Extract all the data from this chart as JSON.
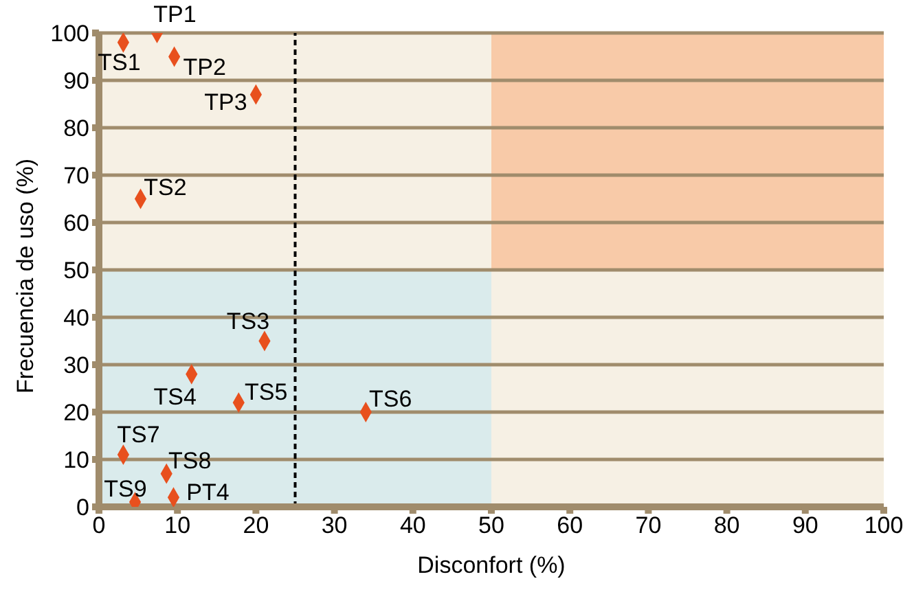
{
  "chart_data": {
    "type": "scatter",
    "xlabel": "Disconfort (%)",
    "ylabel": "Frecuencia de uso (%)",
    "x": [
      3.1,
      7.4,
      9.6,
      20,
      5.3,
      21.1,
      11.8,
      17.8,
      34,
      3.1,
      8.6,
      4.6,
      9.5
    ],
    "values": [
      98,
      100,
      95,
      87,
      65,
      35,
      28,
      22,
      20,
      11,
      7,
      1,
      2
    ],
    "color": "#e8501e",
    "marker": "diamond",
    "xlim": [
      0,
      100
    ],
    "ylim": [
      0,
      100
    ],
    "xticks": [
      0,
      10,
      20,
      30,
      40,
      50,
      60,
      70,
      80,
      90,
      100
    ],
    "yticks": [
      0,
      10,
      20,
      30,
      40,
      50,
      60,
      70,
      80,
      90,
      100
    ],
    "grid": "y",
    "ref_lines": [
      {
        "axis": "x",
        "value": 25,
        "color": "#000000",
        "line_style": "dashed"
      }
    ],
    "bands": [
      {
        "axis": "x",
        "from": 0,
        "to": 50,
        "color": "#daebec"
      },
      {
        "axis": "y",
        "from": 50,
        "to": 100,
        "color": "#f8caa8"
      }
    ],
    "annotations": [
      {
        "text": "TS1",
        "x": 3.1,
        "y": 98
      },
      {
        "text": "TP1",
        "x": 7.4,
        "y": 100
      },
      {
        "text": "TP2",
        "x": 9.6,
        "y": 95
      },
      {
        "text": "TP3",
        "x": 20,
        "y": 87
      },
      {
        "text": "TS2",
        "x": 5.3,
        "y": 65
      },
      {
        "text": "TS3",
        "x": 21.1,
        "y": 35
      },
      {
        "text": "TS4",
        "x": 11.8,
        "y": 28
      },
      {
        "text": "TS5",
        "x": 17.8,
        "y": 22
      },
      {
        "text": "TS6",
        "x": 34,
        "y": 20
      },
      {
        "text": "TS7",
        "x": 3.1,
        "y": 11
      },
      {
        "text": "TS8",
        "x": 8.6,
        "y": 7
      },
      {
        "text": "TS9",
        "x": 4.6,
        "y": 1
      },
      {
        "text": "PT4",
        "x": 9.5,
        "y": 2
      }
    ]
  }
}
